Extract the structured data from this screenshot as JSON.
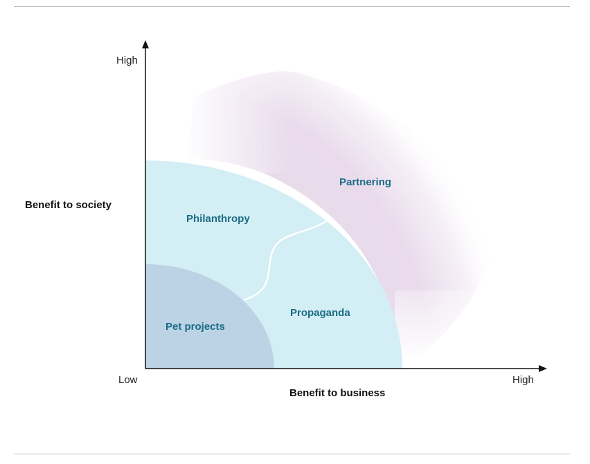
{
  "diagram": {
    "y_axis": {
      "title": "Benefit to society",
      "high_label": "High"
    },
    "x_axis": {
      "title": "Benefit to business",
      "low_label": "Low",
      "high_label": "High"
    },
    "regions": [
      {
        "id": "pet-projects",
        "label": "Pet projects",
        "color": "#bcd3e6"
      },
      {
        "id": "philanthropy",
        "label": "Philanthropy",
        "color": "#d3eef4"
      },
      {
        "id": "propaganda",
        "label": "Propaganda",
        "color": "#d3eef4"
      },
      {
        "id": "partnering",
        "label": "Partnering",
        "color": "#e3d4e6"
      }
    ],
    "colors": {
      "label_text": "#1a6b86",
      "axis": "#111111",
      "rule": "#bfbfbf"
    }
  }
}
